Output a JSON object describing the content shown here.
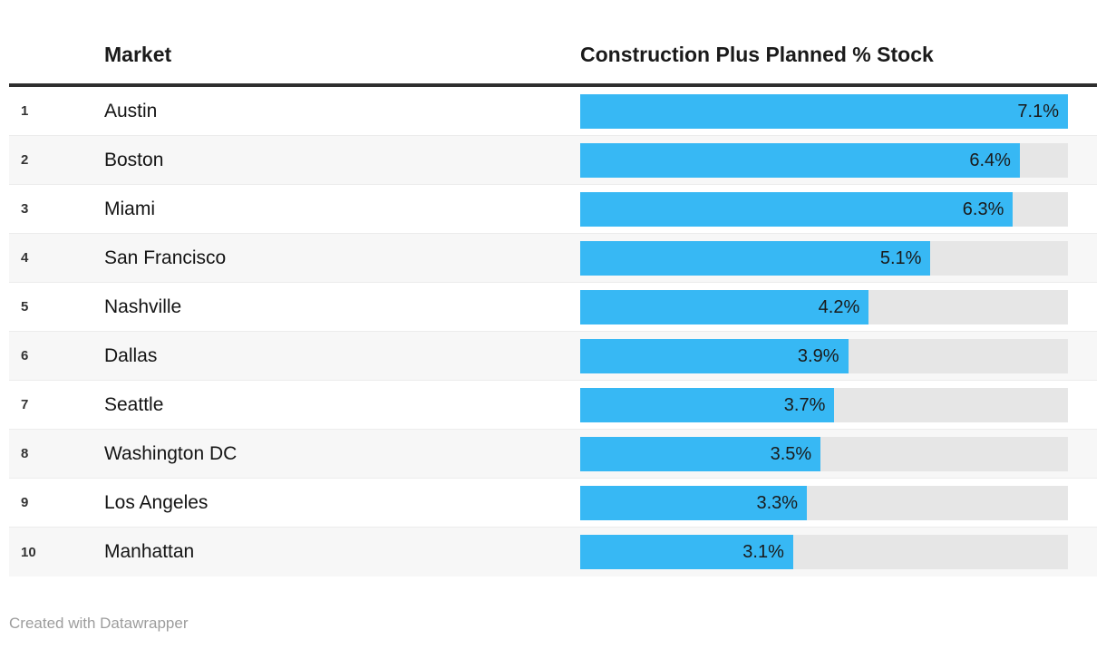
{
  "header": {
    "market_label": "Market",
    "value_label": "Construction Plus Planned % Stock"
  },
  "footer": {
    "attribution": "Created with Datawrapper"
  },
  "colors": {
    "bar": "#37b8f4",
    "track": "#e6e6e6",
    "zebra_stripe": "#f7f7f7",
    "header_rule": "#2e2e2e",
    "text": "#141414",
    "footer_text": "#9d9d9d"
  },
  "table": {
    "max_value": 7.1,
    "rows": [
      {
        "rank": "1",
        "market": "Austin",
        "value": 7.1,
        "label": "7.1%"
      },
      {
        "rank": "2",
        "market": "Boston",
        "value": 6.4,
        "label": "6.4%"
      },
      {
        "rank": "3",
        "market": "Miami",
        "value": 6.3,
        "label": "6.3%"
      },
      {
        "rank": "4",
        "market": "San Francisco",
        "value": 5.1,
        "label": "5.1%"
      },
      {
        "rank": "5",
        "market": "Nashville",
        "value": 4.2,
        "label": "4.2%"
      },
      {
        "rank": "6",
        "market": "Dallas",
        "value": 3.9,
        "label": "3.9%"
      },
      {
        "rank": "7",
        "market": "Seattle",
        "value": 3.7,
        "label": "3.7%"
      },
      {
        "rank": "8",
        "market": "Washington DC",
        "value": 3.5,
        "label": "3.5%"
      },
      {
        "rank": "9",
        "market": "Los Angeles",
        "value": 3.3,
        "label": "3.3%"
      },
      {
        "rank": "10",
        "market": "Manhattan",
        "value": 3.1,
        "label": "3.1%"
      }
    ]
  },
  "chart_data": {
    "type": "bar",
    "orientation": "horizontal",
    "title": "Construction Plus Planned % Stock",
    "categories": [
      "Austin",
      "Boston",
      "Miami",
      "San Francisco",
      "Nashville",
      "Dallas",
      "Seattle",
      "Washington DC",
      "Los Angeles",
      "Manhattan"
    ],
    "values": [
      7.1,
      6.4,
      6.3,
      5.1,
      4.2,
      3.9,
      3.7,
      3.5,
      3.3,
      3.1
    ],
    "value_labels": [
      "7.1%",
      "6.4%",
      "6.3%",
      "5.1%",
      "4.2%",
      "3.9%",
      "3.7%",
      "3.5%",
      "3.3%",
      "3.1%"
    ],
    "ranks": [
      1,
      2,
      3,
      4,
      5,
      6,
      7,
      8,
      9,
      10
    ],
    "xlabel": "Construction Plus Planned % Stock",
    "ylabel": "Market",
    "xlim": [
      0,
      7.1
    ],
    "grid": false,
    "legend": "none",
    "attribution": "Created with Datawrapper"
  }
}
